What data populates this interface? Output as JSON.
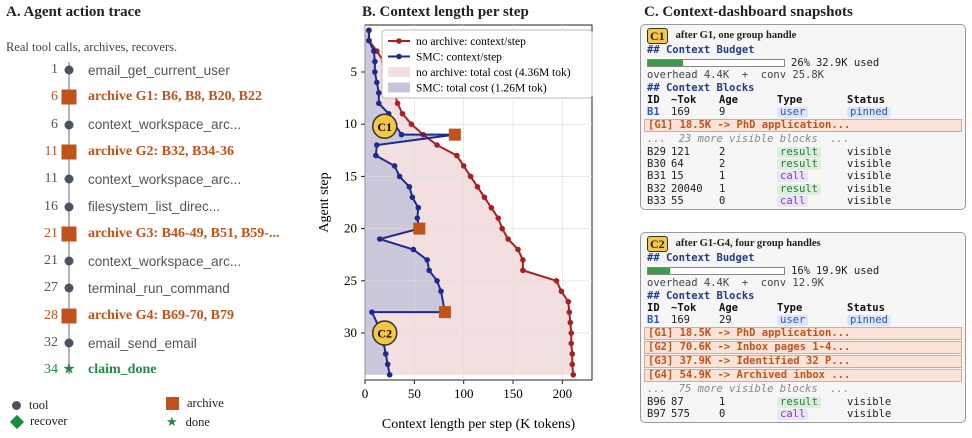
{
  "panelA": {
    "title": "A.  Agent action trace",
    "subtitle": "Real tool calls, archives, recovers.",
    "rows": [
      {
        "num": "1",
        "kind": "tool",
        "label": "email_get_current_user"
      },
      {
        "num": "6",
        "kind": "archive",
        "label": "archive G1: B6, B8, B20, B22"
      },
      {
        "num": "6",
        "kind": "tool",
        "label": "context_workspace_arc..."
      },
      {
        "num": "11",
        "kind": "archive",
        "label": "archive G2: B32, B34-36"
      },
      {
        "num": "11",
        "kind": "tool",
        "label": "context_workspace_arc..."
      },
      {
        "num": "16",
        "kind": "tool",
        "label": "filesystem_list_direc..."
      },
      {
        "num": "21",
        "kind": "archive",
        "label": "archive G3: B46-49, B51, B59-..."
      },
      {
        "num": "21",
        "kind": "tool",
        "label": "context_workspace_arc..."
      },
      {
        "num": "27",
        "kind": "tool",
        "label": "terminal_run_command"
      },
      {
        "num": "28",
        "kind": "archive",
        "label": "archive G4: B69-70, B79"
      },
      {
        "num": "32",
        "kind": "tool",
        "label": "email_send_email"
      },
      {
        "num": "34",
        "kind": "done",
        "label": "claim_done"
      }
    ],
    "legend": {
      "tool": "tool",
      "archive": "archive",
      "recover": "recover",
      "done": "done"
    }
  },
  "panelB": {
    "title": "B.  Context length per step",
    "chart_data": {
      "type": "line",
      "xlabel": "Context length per step (K tokens)",
      "ylabel": "Agent step",
      "xlim": [
        0,
        230
      ],
      "ylim": [
        34.5,
        0.5
      ],
      "xticks": [
        0,
        50,
        100,
        150,
        200
      ],
      "yticks": [
        5,
        10,
        15,
        20,
        25,
        30
      ],
      "legend_position": "top-right",
      "series": [
        {
          "name": "no archive: context/step",
          "color": "#a82020",
          "x": [
            4,
            4,
            12,
            19,
            22,
            27,
            30,
            33,
            38,
            47,
            59,
            73,
            93,
            100,
            107,
            114,
            121,
            128,
            135,
            139,
            145,
            155,
            160,
            160,
            194,
            199,
            206,
            207,
            208,
            209,
            209,
            210,
            210,
            211
          ],
          "y": [
            1,
            2,
            3,
            4,
            5,
            6,
            7,
            8,
            9,
            10,
            11,
            12,
            13,
            14,
            15,
            16,
            17,
            18,
            19,
            20,
            21,
            22,
            23,
            24,
            25,
            26,
            27,
            28,
            29,
            30,
            31,
            32,
            33,
            34
          ]
        },
        {
          "name": "SMC: context/step",
          "color": "#1e2a8c",
          "x": [
            4,
            4,
            9,
            10,
            10,
            12,
            14,
            14,
            24,
            30,
            37,
            91,
            12,
            11,
            30,
            35,
            45,
            48,
            54,
            53,
            55,
            15,
            49,
            63,
            65,
            73,
            77,
            81,
            7,
            17,
            19,
            21,
            23,
            25
          ],
          "y": [
            1,
            2,
            3,
            4,
            5,
            6,
            7,
            8,
            9,
            10,
            11,
            11,
            12,
            13,
            14,
            15,
            16,
            17,
            18,
            19,
            20,
            21,
            22,
            23,
            24,
            25,
            26,
            28,
            28,
            30,
            31,
            32,
            33,
            34
          ]
        },
        {
          "name": "no archive: total cost (4.36M tok)",
          "color": "#f3dfe0",
          "kind": "area"
        },
        {
          "name": "SMC: total cost (1.26M tok)",
          "color": "#c7c5dc",
          "kind": "area"
        }
      ],
      "archive_markers": {
        "x": [
          91,
          55,
          81
        ],
        "y": [
          11,
          20,
          28
        ]
      },
      "callouts": [
        {
          "label": "C1",
          "x": 20,
          "y": 10.2
        },
        {
          "label": "C2",
          "x": 20,
          "y": 30
        }
      ]
    }
  },
  "panelC": {
    "title": "C.  Context-dashboard snapshots",
    "cards": [
      {
        "badge": "C1",
        "caption": "after G1, one group handle",
        "budget_heading": "## Context Budget",
        "budget_fraction": 0.26,
        "budget_pct": "26%",
        "budget_used": "32.9K used",
        "overhead": "overhead 4.4K  +  conv 25.8K",
        "blocks_heading": "## Context Blocks",
        "header": [
          "ID",
          "~Tok",
          "Age",
          "Type",
          "Status"
        ],
        "pinned": {
          "id": "B1",
          "tok": "169",
          "age": "9",
          "type": "user",
          "status": "pinned"
        },
        "groups": [
          "[G1] 18.5K -> PhD application..."
        ],
        "more": "...  23 more visible blocks  ...",
        "rows": [
          {
            "id": "B29",
            "tok": "121",
            "age": "2",
            "type": "result",
            "status": "visible"
          },
          {
            "id": "B30",
            "tok": "64",
            "age": "2",
            "type": "result",
            "status": "visible"
          },
          {
            "id": "B31",
            "tok": "15",
            "age": "1",
            "type": "call",
            "status": "visible"
          },
          {
            "id": "B32",
            "tok": "20040",
            "age": "1",
            "type": "result",
            "status": "visible"
          },
          {
            "id": "B33",
            "tok": "55",
            "age": "0",
            "type": "call",
            "status": "visible"
          }
        ]
      },
      {
        "badge": "C2",
        "caption": "after G1-G4, four group handles",
        "budget_heading": "## Context Budget",
        "budget_fraction": 0.16,
        "budget_pct": "16%",
        "budget_used": "19.9K used",
        "overhead": "overhead 4.4K  +  conv 12.9K",
        "blocks_heading": "## Context Blocks",
        "header": [
          "ID",
          "~Tok",
          "Age",
          "Type",
          "Status"
        ],
        "pinned": {
          "id": "B1",
          "tok": "169",
          "age": "29",
          "type": "user",
          "status": "pinned"
        },
        "groups": [
          "[G1] 18.5K -> PhD application...",
          "[G2] 70.6K -> Inbox pages 1-4...",
          "[G3] 37.9K -> Identified 32 P...",
          "[G4] 54.9K -> Archived inbox ..."
        ],
        "more": "...  75 more visible blocks  ...",
        "rows": [
          {
            "id": "B96",
            "tok": "87",
            "age": "1",
            "type": "result",
            "status": "visible"
          },
          {
            "id": "B97",
            "tok": "575",
            "age": "0",
            "type": "call",
            "status": "visible"
          }
        ]
      }
    ]
  }
}
